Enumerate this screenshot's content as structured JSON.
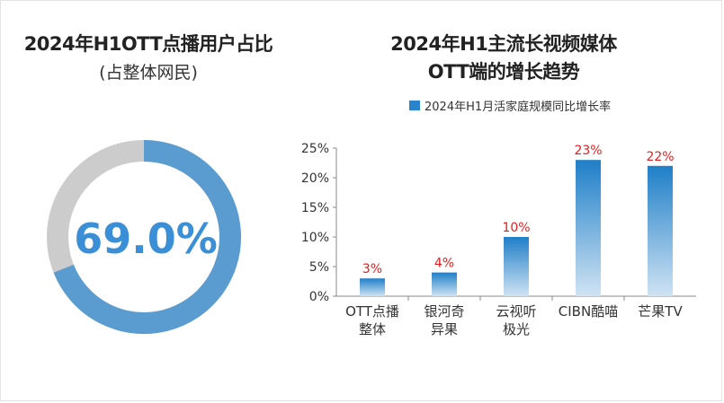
{
  "donut": {
    "title": "2024年H1OTT点播用户占比",
    "subtitle": "(占整体网民)",
    "value": 69.0,
    "label": "69.0%",
    "colors": {
      "fill": "#5a9bd0",
      "rest": "#cccccc",
      "text": "#3a8fd6"
    }
  },
  "colors": {
    "bar_top": "#1f7fc8",
    "bar_bottom": "#cfe3f3",
    "label": "#e02020",
    "legend": "#2a84cc"
  },
  "chart_data": {
    "type": "bar",
    "title_lines": [
      "2024年H1主流长视频媒体",
      "OTT端的增长趋势"
    ],
    "series": [
      {
        "name": "2024年H1月活家庭规模同比增长率",
        "values": [
          3,
          4,
          10,
          23,
          22
        ]
      }
    ],
    "categories": [
      [
        "OTT点播",
        "整体"
      ],
      [
        "银河奇",
        "异果"
      ],
      [
        "云视听",
        "极光"
      ],
      [
        "CIBN酷喵"
      ],
      [
        "芒果TV"
      ]
    ],
    "data_labels": [
      "3%",
      "4%",
      "10%",
      "23%",
      "22%"
    ],
    "yticks": [
      "0%",
      "5%",
      "10%",
      "15%",
      "20%",
      "25%"
    ],
    "ylim": [
      0,
      25
    ],
    "grid": false,
    "legend": "top"
  }
}
